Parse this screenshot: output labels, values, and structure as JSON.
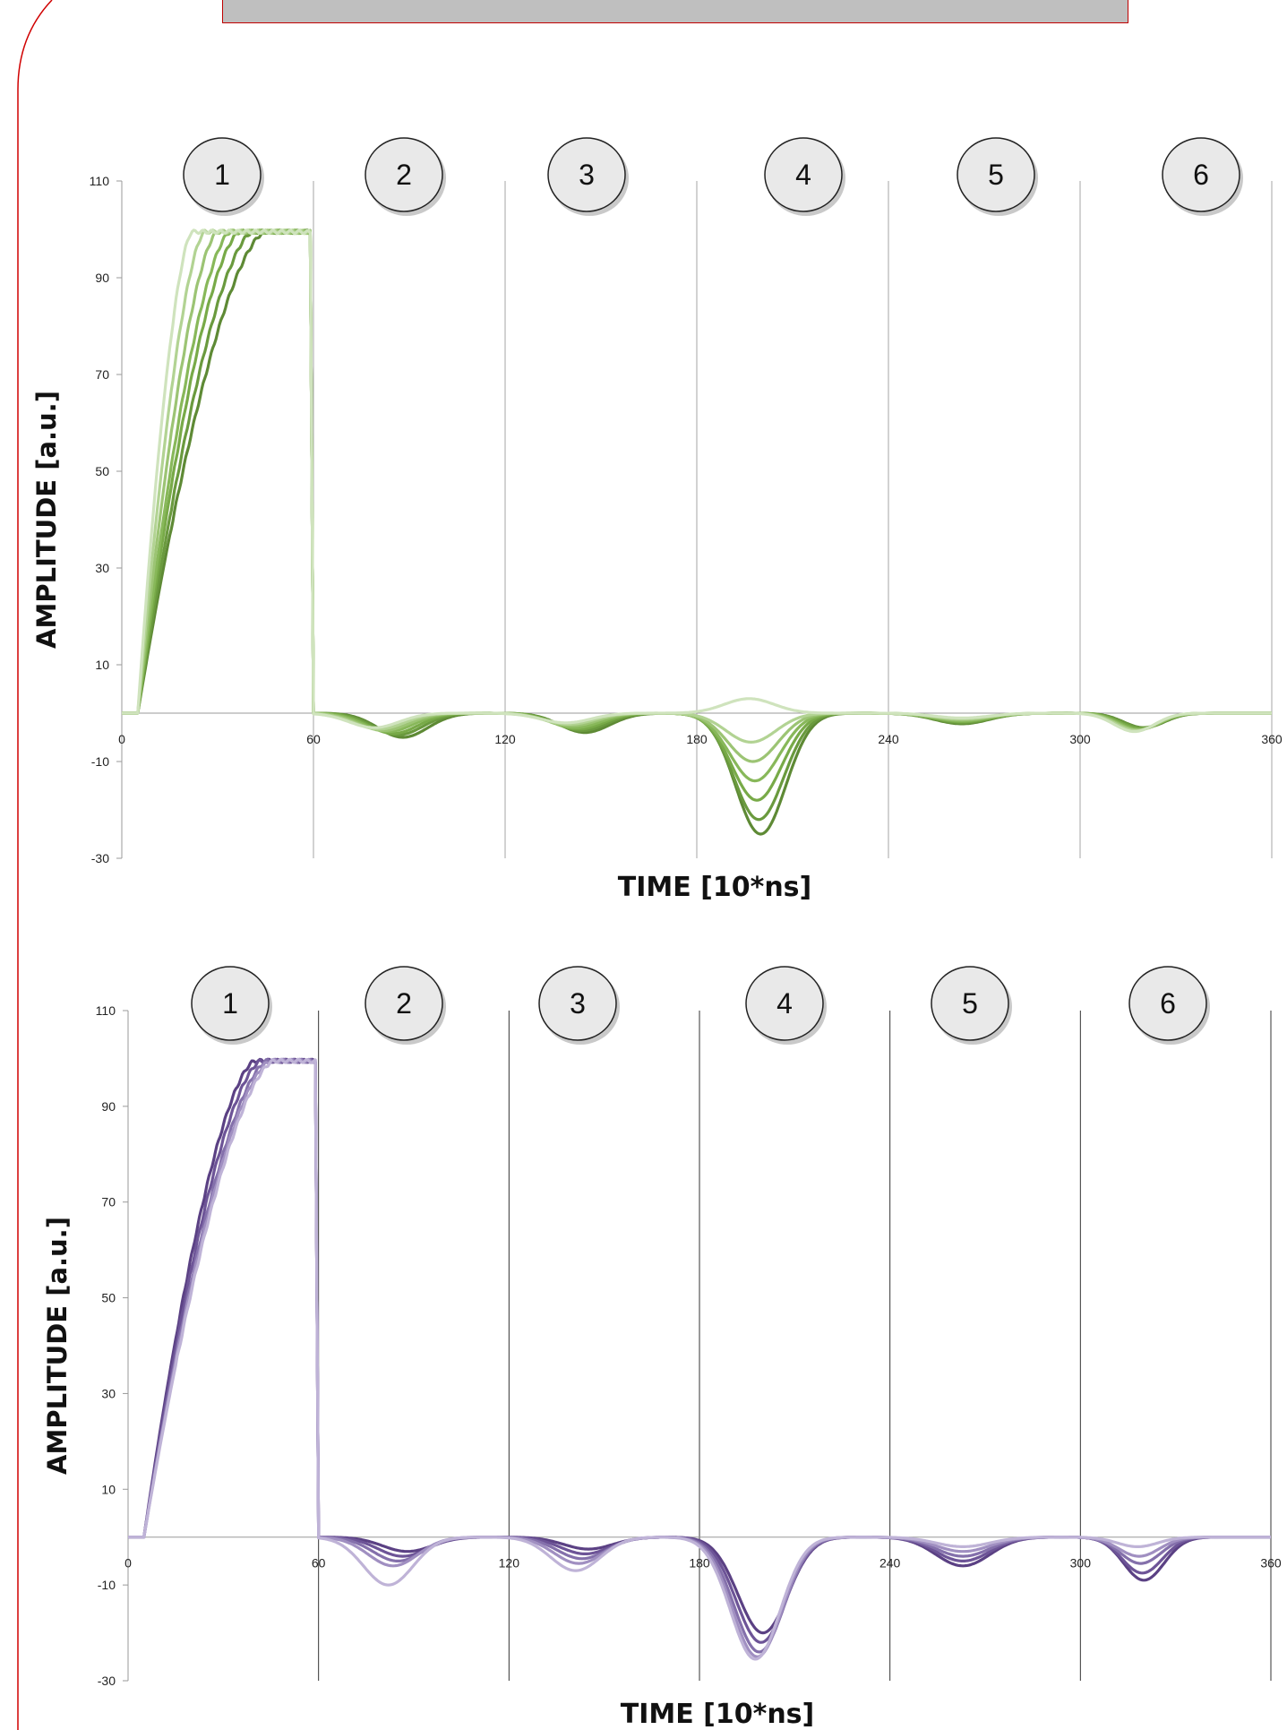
{
  "chart_data": [
    {
      "type": "line",
      "xlabel": "TIME [10*ns]",
      "ylabel": "AMPLITUDE [a.u.]",
      "xlim": [
        0,
        360
      ],
      "ylim": [
        -30,
        110
      ],
      "xticks": [
        "0",
        "60",
        "120",
        "180",
        "240",
        "300",
        "360"
      ],
      "yticks": [
        "110",
        "90",
        "70",
        "50",
        "30",
        "10",
        "-10",
        "-30"
      ],
      "segments": [
        "1",
        "2",
        "3",
        "4",
        "5",
        "6"
      ],
      "palette": [
        "#5e8a35",
        "#6a9a3e",
        "#78aa48",
        "#88b85a",
        "#9cc474",
        "#b2d393",
        "#cfe3bd"
      ],
      "series": [
        {
          "rise_end": 45,
          "seg2_dip": -5.0,
          "seg3_dip": -4.0,
          "seg4_dip": -25.0,
          "seg5_dip": -2.2,
          "seg6_dip": -3.0
        },
        {
          "rise_end": 41,
          "seg2_dip": -4.5,
          "seg3_dip": -3.6,
          "seg4_dip": -22.0,
          "seg5_dip": -2.0,
          "seg6_dip": -3.0
        },
        {
          "rise_end": 37,
          "seg2_dip": -4.2,
          "seg3_dip": -3.3,
          "seg4_dip": -18.0,
          "seg5_dip": -1.8,
          "seg6_dip": -3.2
        },
        {
          "rise_end": 34,
          "seg2_dip": -3.8,
          "seg3_dip": -3.0,
          "seg4_dip": -14.0,
          "seg5_dip": -1.6,
          "seg6_dip": -3.4
        },
        {
          "rise_end": 30,
          "seg2_dip": -3.6,
          "seg3_dip": -2.6,
          "seg4_dip": -10.0,
          "seg5_dip": -1.4,
          "seg6_dip": -3.5
        },
        {
          "rise_end": 26,
          "seg2_dip": -3.3,
          "seg3_dip": -2.3,
          "seg4_dip": -6.0,
          "seg5_dip": -1.2,
          "seg6_dip": -3.6
        },
        {
          "rise_end": 22,
          "seg2_dip": -3.0,
          "seg3_dip": -2.0,
          "seg4_dip": 3.0,
          "seg5_dip": -1.0,
          "seg6_dip": -3.8
        }
      ]
    },
    {
      "type": "line",
      "xlabel": "TIME [10*ns]",
      "ylabel": "AMPLITUDE [a.u.]",
      "xlim": [
        0,
        360
      ],
      "ylim": [
        -30,
        110
      ],
      "xticks": [
        "0",
        "60",
        "120",
        "180",
        "240",
        "300",
        "360"
      ],
      "yticks": [
        "110",
        "90",
        "70",
        "50",
        "30",
        "10",
        "-10",
        "-30"
      ],
      "segments": [
        "1",
        "2",
        "3",
        "4",
        "5",
        "6"
      ],
      "palette": [
        "#5b4184",
        "#6d5497",
        "#8470ab",
        "#a08fc1",
        "#bfb3d7"
      ],
      "series": [
        {
          "rise_end": 40,
          "seg2_dip": -3.0,
          "seg3_dip": -2.5,
          "seg4_dip": -20.0,
          "seg5_dip": -6.0,
          "seg6_dip": -9.0
        },
        {
          "rise_end": 42,
          "seg2_dip": -4.0,
          "seg3_dip": -3.5,
          "seg4_dip": -22.0,
          "seg5_dip": -5.0,
          "seg6_dip": -7.5
        },
        {
          "rise_end": 44,
          "seg2_dip": -5.0,
          "seg3_dip": -4.5,
          "seg4_dip": -24.0,
          "seg5_dip": -4.0,
          "seg6_dip": -5.5
        },
        {
          "rise_end": 45,
          "seg2_dip": -6.0,
          "seg3_dip": -5.5,
          "seg4_dip": -25.0,
          "seg5_dip": -3.0,
          "seg6_dip": -4.0
        },
        {
          "rise_end": 46,
          "seg2_dip": -10.0,
          "seg3_dip": -7.0,
          "seg4_dip": -25.5,
          "seg5_dip": -2.0,
          "seg6_dip": -2.0
        }
      ]
    }
  ]
}
